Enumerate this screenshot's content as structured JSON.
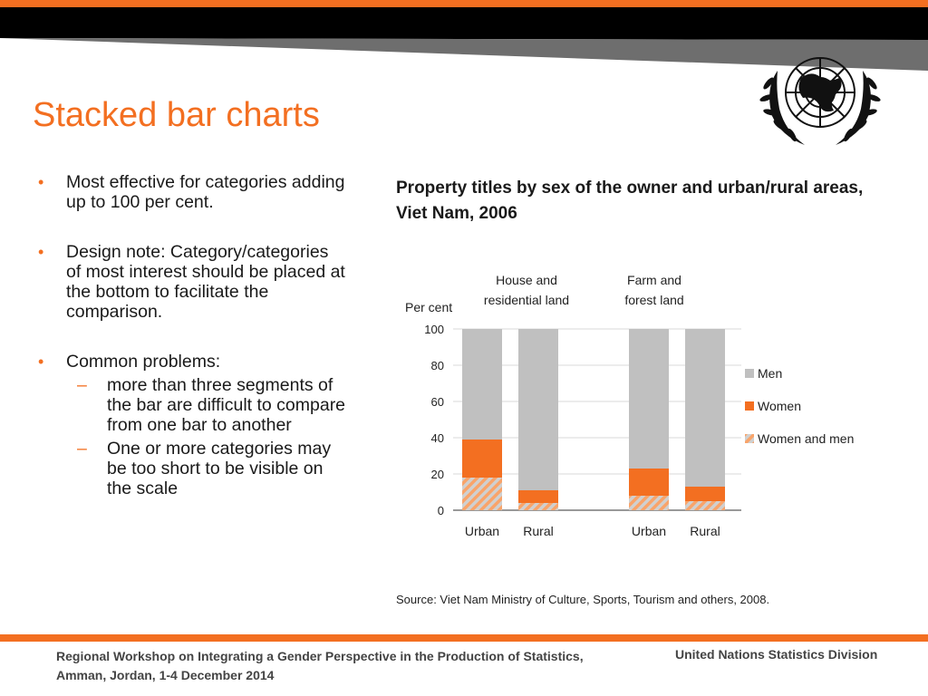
{
  "slide": {
    "title": "Stacked bar charts",
    "bullets": [
      {
        "text": "Most effective for categories adding up to 100 per cent."
      },
      {
        "text": "Design note: Category/categories of most interest should be placed at the bottom to facilitate the comparison."
      },
      {
        "text": "Common problems:",
        "subs": [
          "more than three segments of the bar are difficult to compare from one bar to another",
          "One or more categories may be too short to be visible on the scale"
        ]
      }
    ],
    "source": "Source: Viet Nam Ministry of Culture, Sports, Tourism and others, 2008.",
    "footer": {
      "left": "Regional Workshop on Integrating a Gender Perspective in the Production of Statistics, Amman, Jordan, 1-4 December 2014",
      "right": "United Nations Statistics Division"
    }
  },
  "colors": {
    "accent": "#f36f21",
    "men": "#c0c0c0",
    "women": "#f36f21",
    "both": "#f9a46a",
    "grid": "#d9d9d9"
  },
  "chart_data": {
    "type": "bar",
    "stacked": true,
    "title": "Property titles by sex of the owner and urban/rural areas, Viet Nam, 2006",
    "ylabel": "Per cent",
    "ylim": [
      0,
      100
    ],
    "yticks": [
      0,
      20,
      40,
      60,
      80,
      100
    ],
    "grid": true,
    "legend_position": "right",
    "groups": [
      {
        "label": "House and residential land",
        "categories": [
          "Urban",
          "Rural"
        ]
      },
      {
        "label": "Farm and forest land",
        "categories": [
          "Urban",
          "Rural"
        ]
      }
    ],
    "categories": [
      "Urban",
      "Rural",
      "Urban",
      "Rural"
    ],
    "series": [
      {
        "name": "Women and men",
        "values": [
          18,
          4,
          8,
          5
        ]
      },
      {
        "name": "Women",
        "values": [
          21,
          7,
          15,
          8
        ]
      },
      {
        "name": "Men",
        "values": [
          61,
          89,
          77,
          87
        ]
      }
    ],
    "legend": [
      "Men",
      "Women",
      "Women and men"
    ]
  }
}
